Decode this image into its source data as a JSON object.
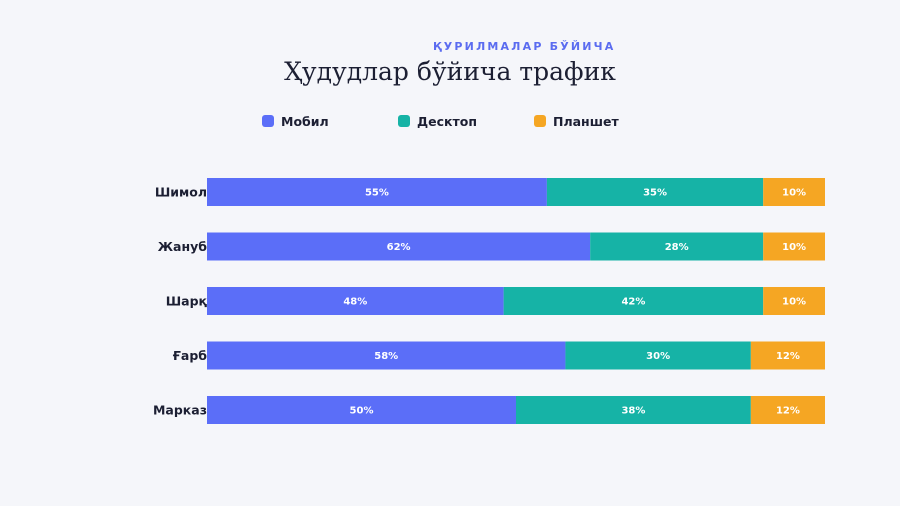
{
  "subtitle": "ҚУРИЛМАЛАР БЎЙИЧА",
  "title": "Ҳудудлар бўйича трафик",
  "legend": [
    {
      "label": "Мобил",
      "color": "#5b6ef8"
    },
    {
      "label": "Десктоп",
      "color": "#16b3a6"
    },
    {
      "label": "Планшет",
      "color": "#f5a623"
    }
  ],
  "chart_data": {
    "type": "bar",
    "orientation": "horizontal",
    "stacked": true,
    "value_unit": "%",
    "title": "Ҳудудлар бўйича трафик",
    "subtitle": "ҚУРИЛМАЛАР БЎЙИЧА",
    "categories": [
      "Шимол",
      "Жануб",
      "Шарқ",
      "Ғарб",
      "Марказ"
    ],
    "series": [
      {
        "name": "Мобил",
        "color": "#5b6ef8",
        "values": [
          55,
          62,
          48,
          58,
          50
        ]
      },
      {
        "name": "Десктоп",
        "color": "#16b3a6",
        "values": [
          35,
          28,
          42,
          30,
          38
        ]
      },
      {
        "name": "Планшет",
        "color": "#f5a623",
        "values": [
          10,
          10,
          10,
          12,
          12
        ]
      }
    ],
    "xlim": [
      0,
      100
    ],
    "grid": false,
    "legend_position": "top"
  }
}
